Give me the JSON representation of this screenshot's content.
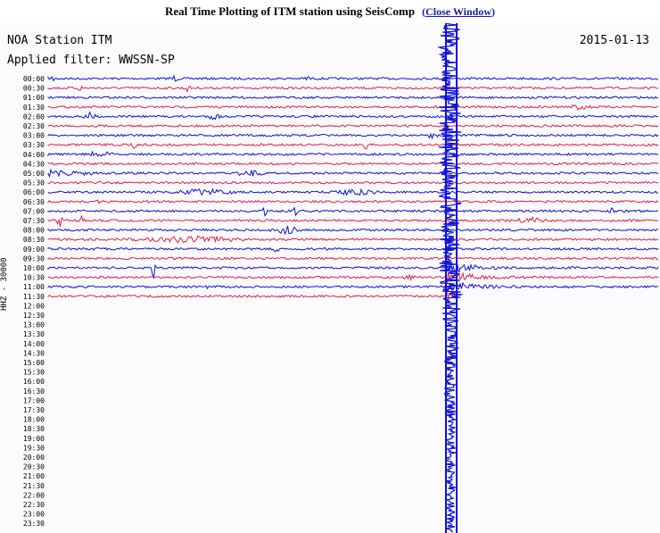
{
  "header": {
    "title": "Real Time Plotting of ITM station using SeisComp",
    "close_open_paren": "(",
    "close_link": "Close Window",
    "close_close_paren": ")"
  },
  "plot": {
    "station": "NOA Station ITM",
    "date": "2015-01-13",
    "filter": "Applied filter: WWSSN-SP",
    "channel": "HHZ - 30000",
    "times": [
      "00:00",
      "00:30",
      "01:00",
      "01:30",
      "02:00",
      "02:30",
      "03:00",
      "03:30",
      "04:00",
      "04:30",
      "05:00",
      "05:30",
      "06:00",
      "06:30",
      "07:00",
      "07:30",
      "08:00",
      "08:30",
      "09:00",
      "09:30",
      "10:00",
      "10:30",
      "11:00",
      "11:30",
      "12:00",
      "12:30",
      "13:00",
      "13:30",
      "14:00",
      "14:30",
      "15:00",
      "15:30",
      "16:00",
      "16:30",
      "17:00",
      "17:30",
      "18:00",
      "18:30",
      "19:00",
      "19:30",
      "20:00",
      "20:30",
      "21:00",
      "21:30",
      "22:00",
      "22:30",
      "23:00",
      "23:30"
    ],
    "recorded_rows": 24,
    "colors": {
      "even": "#1010d8",
      "odd": "#e0204a",
      "text": "#000000",
      "background": "#fbfbfd"
    }
  }
}
